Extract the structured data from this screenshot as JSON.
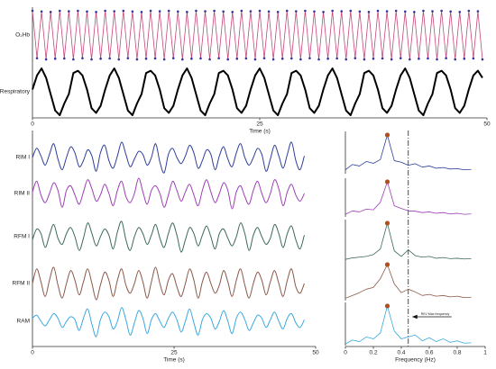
{
  "chart_data": [
    {
      "type": "line",
      "xlabel": "Time (s)",
      "xlim": [
        0,
        50
      ],
      "xticks": [
        0,
        25,
        50
      ],
      "ylim": [
        -1,
        1
      ],
      "smooth": false,
      "x": [
        0,
        0.5,
        1,
        1.5,
        2,
        2.5,
        3,
        3.5,
        4,
        4.5,
        5,
        5.5,
        6,
        6.5,
        7,
        7.5,
        8,
        8.5,
        9,
        9.5,
        10,
        10.5,
        11,
        11.5,
        12,
        12.5,
        13,
        13.5,
        14,
        14.5,
        15,
        15.5,
        16,
        16.5,
        17,
        17.5,
        18,
        18.5,
        19,
        19.5,
        20,
        20.5,
        21,
        21.5,
        22,
        22.5,
        23,
        23.5,
        24,
        24.5,
        25,
        25.5,
        26,
        26.5,
        27,
        27.5,
        28,
        28.5,
        29,
        29.5,
        30,
        30.5,
        31,
        31.5,
        32,
        32.5,
        33,
        33.5,
        34,
        34.5,
        35,
        35.5,
        36,
        36.5,
        37,
        37.5,
        38,
        38.5,
        39,
        39.5,
        40,
        40.5,
        41,
        41.5,
        42,
        42.5,
        43,
        43.5,
        44,
        44.5,
        45,
        45.5,
        46,
        46.5,
        47,
        47.5,
        48,
        48.5,
        49,
        49.5
      ],
      "series": [
        {
          "name": "O₂Hb",
          "color": "#c4477a",
          "width": 0.8,
          "marker_color": "#34349a",
          "values": [
            1,
            -0.95,
            0.97,
            -1,
            0.95,
            -0.97,
            1,
            -0.96,
            0.98,
            -1,
            1,
            -0.95,
            0.97,
            -1,
            0.95,
            -0.97,
            1,
            -0.96,
            0.98,
            -1,
            1,
            -0.95,
            0.97,
            -1,
            0.95,
            -0.97,
            1,
            -0.96,
            0.98,
            -1,
            1,
            -0.95,
            0.97,
            -1,
            0.95,
            -0.97,
            1,
            -0.96,
            0.98,
            -1,
            1,
            -0.95,
            0.97,
            -1,
            0.95,
            -0.97,
            1,
            -0.96,
            0.98,
            -1,
            1,
            -0.95,
            0.97,
            -1,
            0.95,
            -0.97,
            1,
            -0.96,
            0.98,
            -1,
            1,
            -0.95,
            0.97,
            -1,
            0.95,
            -0.97,
            1,
            -0.96,
            0.98,
            -1,
            1,
            -0.95,
            0.97,
            -1,
            0.95,
            -0.97,
            1,
            -0.96,
            0.98,
            -1,
            1,
            -0.95,
            0.97,
            -1,
            0.95,
            -0.97,
            1,
            -0.96,
            0.98,
            -1,
            1,
            -0.95,
            0.97,
            -1,
            0.95,
            -0.97,
            1,
            -0.96,
            0.98,
            -1
          ]
        },
        {
          "name": "Respiratory",
          "color": "#000000",
          "width": 2,
          "values": [
            0.1,
            0.7,
            1,
            0.6,
            -0.1,
            -0.8,
            -1,
            -0.5,
            -0.1,
            0.8,
            0.9,
            0.7,
            0.1,
            -0.7,
            -0.9,
            -0.6,
            0.1,
            0.7,
            1,
            0.6,
            -0.1,
            -0.8,
            -1,
            -0.5,
            -0.1,
            0.8,
            0.9,
            0.7,
            0.1,
            -0.7,
            -0.9,
            -0.6,
            0.1,
            0.7,
            1,
            0.6,
            -0.1,
            -0.8,
            -1,
            -0.5,
            -0.1,
            0.8,
            0.9,
            0.7,
            0.1,
            -0.7,
            -0.9,
            -0.6,
            0.1,
            0.7,
            1,
            0.6,
            -0.1,
            -0.8,
            -1,
            -0.5,
            -0.1,
            0.8,
            0.9,
            0.7,
            0.1,
            -0.7,
            -0.9,
            -0.6,
            0.1,
            0.7,
            1,
            0.6,
            -0.1,
            -0.8,
            -1,
            -0.5,
            -0.1,
            0.8,
            0.9,
            0.7,
            0.1,
            -0.7,
            -0.9,
            -0.6,
            0.1,
            0.7,
            1,
            0.6,
            -0.1,
            -0.8,
            -1,
            -0.5,
            -0.1,
            0.8,
            0.9,
            0.7,
            0.1,
            -0.7,
            -0.9,
            -0.6,
            0.1,
            0.7,
            0.9,
            0.6
          ]
        }
      ]
    },
    {
      "type": "line",
      "xlabel": "Time (s)",
      "xlim": [
        0,
        50
      ],
      "xticks": [
        0,
        25,
        50
      ],
      "ylim": [
        -1,
        1
      ],
      "smooth": true,
      "x": [
        0,
        0.75,
        1.5,
        2.25,
        3,
        3.75,
        4.5,
        5.25,
        6,
        6.75,
        7.5,
        8.25,
        9,
        9.75,
        10.5,
        11.25,
        12,
        12.75,
        13.5,
        14.25,
        15,
        15.75,
        16.5,
        17.25,
        18,
        18.75,
        19.5,
        20.25,
        21,
        21.75,
        22.5,
        23.25,
        24,
        24.75,
        25.5,
        26.25,
        27,
        27.75,
        28.5,
        29.25,
        30,
        30.75,
        31.5,
        32.25,
        33,
        33.75,
        34.5,
        35.25,
        36,
        36.75,
        37.5,
        38.25,
        39,
        39.75,
        40.5,
        41.25,
        42,
        42.75,
        43.5,
        44.25,
        45,
        45.75,
        46.5,
        47.25,
        48
      ],
      "series": [
        {
          "name": "RIM I",
          "color": "#2e3d98",
          "width": 1,
          "values": [
            0,
            0.6,
            0.1,
            -0.5,
            0.2,
            0.9,
            -0.1,
            -0.8,
            0,
            0.7,
            0.3,
            -0.6,
            -0.2,
            0.5,
            0.1,
            -0.9,
            0.3,
            0.8,
            -0.2,
            -0.7,
            0.1,
            1,
            0.2,
            -0.6,
            -0.1,
            0.4,
            0.2,
            -0.5,
            0,
            0.9,
            -0.3,
            -1,
            0.2,
            0.6,
            0,
            -0.4,
            0.1,
            0.8,
            0.3,
            -0.7,
            -0.2,
            0.5,
            0.2,
            -0.8,
            0.1,
            0.7,
            -0.1,
            -0.6,
            0.3,
            0.9,
            0,
            -0.5,
            0,
            0.6,
            0.2,
            -0.9,
            -0.1,
            0.8,
            0.1,
            -0.7,
            0.2,
            1,
            -0.2,
            -0.8,
            0.1
          ]
        },
        {
          "name": "RIM II",
          "color": "#9a3fb3",
          "width": 1,
          "values": [
            0.1,
            0.8,
            -0.1,
            -0.6,
            0,
            0.7,
            0.2,
            -0.9,
            0.2,
            0.5,
            -0.1,
            -0.7,
            0.1,
            0.9,
            0.3,
            -0.5,
            -0.1,
            0.6,
            0,
            -0.8,
            0.2,
            0.8,
            -0.2,
            -0.6,
            0,
            1,
            0.1,
            -0.7,
            0.2,
            0.5,
            0,
            -0.9,
            -0.1,
            0.8,
            0.2,
            -0.5,
            0.1,
            0.6,
            -0.1,
            -0.8,
            0.2,
            0.9,
            0.1,
            -0.6,
            0,
            0.7,
            0.2,
            -1,
            0.1,
            0.5,
            -0.2,
            -0.7,
            0.2,
            0.8,
            0,
            -0.6,
            0,
            0.9,
            0.3,
            -0.8,
            0.1,
            0.6,
            -0.1,
            -0.5,
            0
          ]
        },
        {
          "name": "RFM I",
          "color": "#3c6a56",
          "width": 1,
          "values": [
            -0.2,
            0.5,
            0.2,
            -0.7,
            0.1,
            0.8,
            -0.1,
            -0.5,
            0.2,
            0.6,
            0,
            -0.9,
            -0.1,
            0.9,
            0.2,
            -0.6,
            0,
            0.5,
            0.1,
            -0.8,
            0.3,
            1,
            -0.2,
            -0.9,
            0,
            0.6,
            0.2,
            -0.5,
            0.1,
            0.8,
            -0.1,
            -0.7,
            0.2,
            0.9,
            0.1,
            -1,
            -0.2,
            0.6,
            0.2,
            -0.6,
            0.1,
            0.7,
            0,
            -0.8,
            0.2,
            0.5,
            -0.1,
            -0.6,
            0,
            0.9,
            0.2,
            -0.9,
            0.1,
            0.6,
            0,
            -0.5,
            -0.1,
            0.8,
            0.2,
            -0.7,
            0.2,
            0.7,
            -0.2,
            -0.8,
            0.1
          ]
        },
        {
          "name": "RFM II",
          "color": "#8a5848",
          "width": 1,
          "values": [
            0,
            0.9,
            0.1,
            -0.8,
            0.2,
            1,
            -0.1,
            -0.9,
            0,
            0.8,
            0.2,
            -0.7,
            0.1,
            0.9,
            0,
            -1,
            -0.1,
            0.7,
            0.2,
            -0.8,
            0.2,
            0.9,
            -0.1,
            -0.6,
            0,
            0.8,
            0.1,
            -0.9,
            0.1,
            1,
            0,
            -0.7,
            0.2,
            0.6,
            -0.2,
            -0.8,
            0,
            0.9,
            0.2,
            -0.9,
            0.1,
            0.7,
            0,
            -0.6,
            -0.1,
            0.8,
            0.1,
            -0.8,
            0.2,
            0.9,
            -0.1,
            -0.9,
            0,
            0.7,
            0.2,
            -0.7,
            0.1,
            0.8,
            0,
            -0.8,
            0.2,
            0.9,
            -0.2,
            -0.6,
            0
          ]
        },
        {
          "name": "RAM",
          "color": "#3aa8df",
          "width": 1,
          "values": [
            0.2,
            0.4,
            0,
            -0.3,
            0.1,
            0.5,
            0.2,
            -0.4,
            0,
            0.3,
            0.1,
            -0.6,
            0.2,
            0.8,
            -0.2,
            -1,
            0.1,
            0.6,
            0.3,
            -0.5,
            0,
            0.9,
            0.1,
            -0.9,
            -0.1,
            0.7,
            0.2,
            -0.8,
            0.1,
            0.5,
            0,
            -0.4,
            0.2,
            0.6,
            0.1,
            -0.7,
            0,
            0.8,
            -0.1,
            -0.9,
            0.1,
            0.5,
            0.2,
            -0.5,
            0,
            0.7,
            0,
            -0.8,
            0.2,
            0.6,
            0.1,
            -0.6,
            -0.1,
            0.4,
            0.2,
            -0.4,
            0.1,
            0.6,
            0,
            -0.5,
            0.2,
            0.5,
            -0.1,
            -0.4,
            0.1
          ]
        }
      ]
    },
    {
      "type": "line",
      "xlabel": "Frequency (Hz)",
      "xlim": [
        0,
        1
      ],
      "xticks": [
        0,
        0.2,
        0.4,
        0.6,
        0.8,
        1
      ],
      "ylim": [
        0,
        1
      ],
      "smooth": false,
      "peak_color": "#b0501f",
      "vline": 0.45,
      "annotation": "RIIV Max frequency",
      "x": [
        0,
        0.05,
        0.1,
        0.15,
        0.2,
        0.25,
        0.3,
        0.35,
        0.4,
        0.45,
        0.5,
        0.55,
        0.6,
        0.65,
        0.7,
        0.75,
        0.8,
        0.85,
        0.9
      ],
      "series": [
        {
          "color": "#2e3d98",
          "width": 0.8,
          "values": [
            0.08,
            0.22,
            0.18,
            0.3,
            0.25,
            0.35,
            1,
            0.32,
            0.28,
            0.2,
            0.24,
            0.15,
            0.18,
            0.12,
            0.14,
            0.1,
            0.11,
            0.08,
            0.09
          ]
        },
        {
          "color": "#9a3fb3",
          "width": 0.8,
          "values": [
            0.05,
            0.15,
            0.12,
            0.2,
            0.18,
            0.4,
            1,
            0.3,
            0.22,
            0.15,
            0.14,
            0.1,
            0.12,
            0.08,
            0.1,
            0.06,
            0.08,
            0.05,
            0.06
          ]
        },
        {
          "color": "#3c6a56",
          "width": 0.8,
          "values": [
            0.02,
            0.06,
            0.08,
            0.1,
            0.15,
            0.3,
            1,
            0.25,
            0.1,
            0.28,
            0.12,
            0.08,
            0.1,
            0.05,
            0.07,
            0.04,
            0.05,
            0.03,
            0.04
          ]
        },
        {
          "color": "#8a5848",
          "width": 0.8,
          "values": [
            0.04,
            0.12,
            0.2,
            0.3,
            0.35,
            0.6,
            1,
            0.45,
            0.2,
            0.3,
            0.22,
            0.12,
            0.15,
            0.1,
            0.12,
            0.08,
            0.1,
            0.06,
            0.07
          ]
        },
        {
          "color": "#3aa8df",
          "width": 0.8,
          "values": [
            0.02,
            0.12,
            0.08,
            0.2,
            0.15,
            0.3,
            1,
            0.35,
            0.15,
            0.2,
            0.25,
            0.1,
            0.18,
            0.08,
            0.15,
            0.06,
            0.1,
            0.04,
            0.05
          ]
        }
      ]
    }
  ]
}
